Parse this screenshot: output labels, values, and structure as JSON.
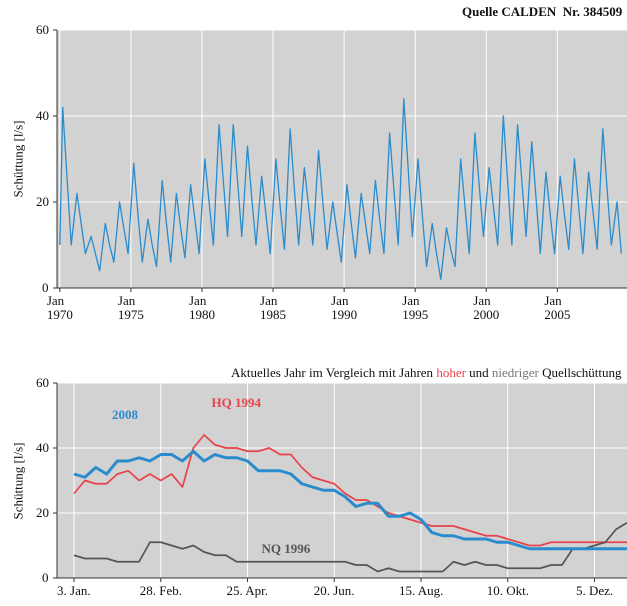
{
  "chart_data": [
    {
      "type": "line",
      "title": "Quelle CALDEN  Nr. 384509",
      "ylabel": "Schüttung [l/s]",
      "color": "#2a8ccc",
      "xlim": [
        1969.8,
        2009.9
      ],
      "ylim": [
        0,
        60
      ],
      "yticks": [
        0,
        20,
        40,
        60
      ],
      "grid": true,
      "xticks": [
        {
          "value": 1970,
          "label": "Jan\n1970"
        },
        {
          "value": 1975,
          "label": "Jan\n1975"
        },
        {
          "value": 1980,
          "label": "Jan\n1980"
        },
        {
          "value": 1985,
          "label": "Jan\n1985"
        },
        {
          "value": 1990,
          "label": "Jan\n1990"
        },
        {
          "value": 1995,
          "label": "Jan\n1995"
        },
        {
          "value": 2000,
          "label": "Jan\n2000"
        },
        {
          "value": 2005,
          "label": "Jan\n2005"
        }
      ],
      "x": [
        1970.0,
        1970.2,
        1970.5,
        1970.8,
        1971.2,
        1971.5,
        1971.8,
        1972.2,
        1972.5,
        1972.8,
        1973.2,
        1973.5,
        1973.8,
        1974.2,
        1974.5,
        1974.8,
        1975.2,
        1975.5,
        1975.8,
        1976.2,
        1976.5,
        1976.8,
        1977.2,
        1977.5,
        1977.8,
        1978.2,
        1978.5,
        1978.8,
        1979.2,
        1979.5,
        1979.8,
        1980.2,
        1980.5,
        1980.8,
        1981.2,
        1981.5,
        1981.8,
        1982.2,
        1982.5,
        1982.8,
        1983.2,
        1983.5,
        1983.8,
        1984.2,
        1984.5,
        1984.8,
        1985.2,
        1985.5,
        1985.8,
        1986.2,
        1986.5,
        1986.8,
        1987.2,
        1987.5,
        1987.8,
        1988.2,
        1988.5,
        1988.8,
        1989.2,
        1989.5,
        1989.8,
        1990.2,
        1990.5,
        1990.8,
        1991.2,
        1991.5,
        1991.8,
        1992.2,
        1992.5,
        1992.8,
        1993.2,
        1993.5,
        1993.8,
        1994.2,
        1994.5,
        1994.8,
        1995.2,
        1995.5,
        1995.8,
        1996.2,
        1996.5,
        1996.8,
        1997.2,
        1997.5,
        1997.8,
        1998.2,
        1998.5,
        1998.8,
        1999.2,
        1999.5,
        1999.8,
        2000.2,
        2000.5,
        2000.8,
        2001.2,
        2001.5,
        2001.8,
        2002.2,
        2002.5,
        2002.8,
        2003.2,
        2003.5,
        2003.8,
        2004.2,
        2004.5,
        2004.8,
        2005.2,
        2005.5,
        2005.8,
        2006.2,
        2006.5,
        2006.8,
        2007.2,
        2007.5,
        2007.8,
        2008.2,
        2008.5,
        2008.8,
        2009.2,
        2009.5
      ],
      "values": [
        10,
        42,
        26,
        10,
        22,
        15,
        8,
        12,
        8,
        4,
        15,
        10,
        6,
        20,
        14,
        8,
        29,
        17,
        6,
        16,
        10,
        5,
        25,
        15,
        6,
        22,
        14,
        7,
        24,
        16,
        8,
        30,
        20,
        10,
        38,
        25,
        12,
        38,
        25,
        12,
        33,
        21,
        10,
        26,
        17,
        8,
        30,
        19,
        9,
        37,
        23,
        10,
        28,
        19,
        10,
        32,
        20,
        9,
        20,
        13,
        6,
        24,
        15,
        7,
        22,
        15,
        8,
        25,
        16,
        8,
        36,
        23,
        10,
        44,
        28,
        12,
        30,
        17,
        5,
        15,
        8,
        2,
        14,
        9,
        5,
        30,
        19,
        8,
        36,
        24,
        12,
        28,
        19,
        10,
        40,
        25,
        10,
        38,
        25,
        12,
        34,
        21,
        8,
        27,
        17,
        8,
        26,
        17,
        9,
        30,
        19,
        8,
        27,
        18,
        9,
        37,
        23,
        10,
        20,
        8
      ]
    },
    {
      "type": "line",
      "subtitle": [
        "Aktuelles Jahr im Vergleich mit Jahren ",
        "hoher",
        " und ",
        "niedriger",
        " Quellschüttung"
      ],
      "ylabel": "Schüttung [l/s]",
      "xlim": [
        -8,
        360
      ],
      "ylim": [
        0,
        60
      ],
      "yticks": [
        0,
        20,
        40,
        60
      ],
      "grid": true,
      "xticks": [
        {
          "value": 3,
          "label": "3. Jan."
        },
        {
          "value": 59,
          "label": "28. Feb."
        },
        {
          "value": 115,
          "label": "25. Apr."
        },
        {
          "value": 171,
          "label": "20. Jun."
        },
        {
          "value": 227,
          "label": "15. Aug."
        },
        {
          "value": 283,
          "label": "10. Okt."
        },
        {
          "value": 339,
          "label": "5. Dez."
        }
      ],
      "x": [
        3,
        10,
        17,
        24,
        31,
        38,
        45,
        52,
        59,
        66,
        73,
        80,
        87,
        94,
        101,
        108,
        115,
        122,
        129,
        136,
        143,
        150,
        157,
        164,
        171,
        178,
        185,
        192,
        199,
        206,
        213,
        220,
        227,
        234,
        241,
        248,
        255,
        262,
        269,
        276,
        283,
        290,
        297,
        304,
        311,
        318,
        325,
        332,
        339,
        346,
        353,
        360
      ],
      "series": [
        {
          "name": "HQ 1994",
          "color": "#e8434a",
          "values": [
            26,
            30,
            29,
            29,
            32,
            33,
            30,
            32,
            30,
            32,
            28,
            40,
            44,
            41,
            40,
            40,
            39,
            39,
            40,
            38,
            38,
            34,
            31,
            30,
            29,
            26,
            24,
            24,
            22,
            20,
            19,
            18,
            17,
            16,
            16,
            16,
            15,
            14,
            13,
            13,
            12,
            11,
            10,
            10,
            11,
            11,
            11,
            11,
            11,
            11,
            11,
            11
          ]
        },
        {
          "name": "NQ 1996",
          "color": "#555555",
          "values": [
            7,
            6,
            6,
            6,
            5,
            5,
            5,
            11,
            11,
            10,
            9,
            10,
            8,
            7,
            7,
            5,
            5,
            5,
            5,
            5,
            5,
            5,
            5,
            5,
            5,
            5,
            4,
            4,
            2,
            3,
            2,
            2,
            2,
            2,
            2,
            5,
            4,
            5,
            4,
            4,
            3,
            3,
            3,
            3,
            4,
            4,
            9,
            9,
            10,
            11,
            15,
            17
          ]
        },
        {
          "name": "2008",
          "color": "#2a8ccc",
          "values": [
            32,
            31,
            34,
            32,
            36,
            36,
            37,
            36,
            38,
            38,
            36,
            39,
            36,
            38,
            37,
            37,
            36,
            33,
            33,
            33,
            32,
            29,
            28,
            27,
            27,
            25,
            22,
            23,
            23,
            19,
            19,
            20,
            18,
            14,
            13,
            13,
            12,
            12,
            12,
            11,
            11,
            10,
            9,
            9,
            9,
            9,
            9,
            9,
            9,
            9,
            9,
            9
          ]
        }
      ]
    }
  ]
}
